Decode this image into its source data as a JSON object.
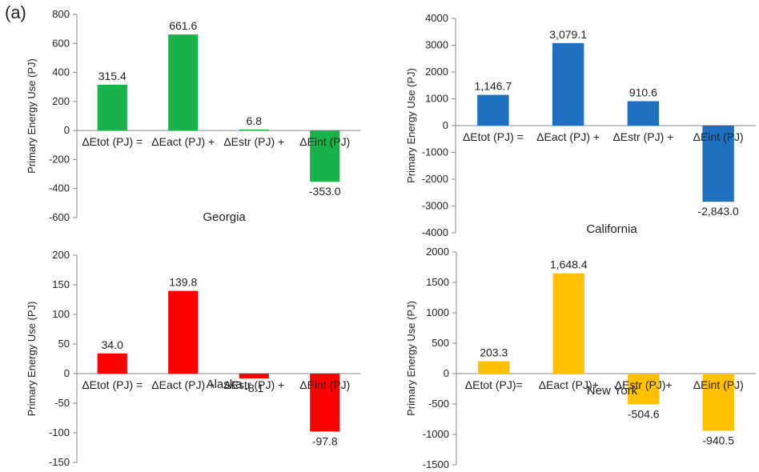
{
  "figure_label": "(a)",
  "chart_data": [
    {
      "type": "bar",
      "title": "Georgia",
      "ylabel": "Primary Energy Use (PJ)",
      "categories": [
        "ΔEtot (PJ) =",
        "ΔEact (PJ) +",
        "ΔEstr (PJ) +",
        "ΔEint (PJ)"
      ],
      "values": [
        315.4,
        661.6,
        6.8,
        -353.0
      ],
      "value_labels": [
        "315.4",
        "661.6",
        "6.8",
        "-353.0"
      ],
      "ylim": [
        -600,
        800
      ],
      "yticks": [
        -600,
        -400,
        -200,
        0,
        200,
        400,
        600,
        800
      ],
      "color": "#19b24b"
    },
    {
      "type": "bar",
      "title": "California",
      "ylabel": "Primary Energy Use (PJ)",
      "categories": [
        "ΔEtot (PJ) =",
        "ΔEact (PJ) +",
        "ΔEstr (PJ) +",
        "ΔEint (PJ)"
      ],
      "values": [
        1146.7,
        3079.1,
        910.6,
        -2843.0
      ],
      "value_labels": [
        "1,146.7",
        "3,079.1",
        "910.6",
        "-2,843.0"
      ],
      "ylim": [
        -4000,
        4000
      ],
      "yticks": [
        -4000,
        -3000,
        -2000,
        -1000,
        0,
        1000,
        2000,
        3000,
        4000
      ],
      "color": "#1f6fc1"
    },
    {
      "type": "bar",
      "title": "Alaska",
      "ylabel": "Primary Energy Use (PJ)",
      "categories": [
        "ΔEtot (PJ) =",
        "ΔEact (PJ) +",
        "ΔEstr (PJ) +",
        "ΔEint (PJ)"
      ],
      "values": [
        34.0,
        139.8,
        -8.1,
        -97.8
      ],
      "value_labels": [
        "34.0",
        "139.8",
        "-8.1",
        "-97.8"
      ],
      "ylim": [
        -150,
        200
      ],
      "yticks": [
        -150,
        -100,
        -50,
        0,
        50,
        100,
        150,
        200
      ],
      "color": "#ff0000"
    },
    {
      "type": "bar",
      "title": "New York",
      "ylabel": "Primary Energy Use (PJ)",
      "categories": [
        "ΔEtot (PJ)=",
        "ΔEact (PJ)+",
        "ΔEstr (PJ)+",
        "ΔEint (PJ)"
      ],
      "values": [
        203.3,
        1648.4,
        -504.6,
        -940.5
      ],
      "value_labels": [
        "203.3",
        "1,648.4",
        "-504.6",
        "-940.5"
      ],
      "ylim": [
        -1500,
        2000
      ],
      "yticks": [
        -1500,
        -1000,
        -500,
        0,
        500,
        1000,
        1500,
        2000
      ],
      "color": "#ffc000"
    }
  ]
}
